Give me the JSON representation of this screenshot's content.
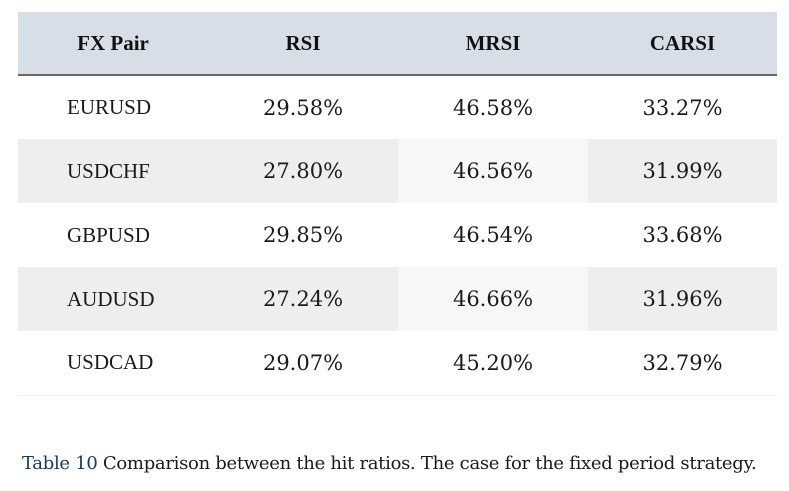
{
  "table": {
    "headers": [
      "FX Pair",
      "RSI",
      "MRSI",
      "CARSI"
    ],
    "rows": [
      [
        "EURUSD",
        "29.58%",
        "46.58%",
        "33.27%"
      ],
      [
        "USDCHF",
        "27.80%",
        "46.56%",
        "31.99%"
      ],
      [
        "GBPUSD",
        "29.85%",
        "46.54%",
        "33.68%"
      ],
      [
        "AUDUSD",
        "27.24%",
        "46.66%",
        "31.96%"
      ],
      [
        "USDCAD",
        "29.07%",
        "45.20%",
        "32.79%"
      ]
    ]
  },
  "caption": {
    "label": "Table 10",
    "text": " Comparison between the hit ratios. The case for the fixed period strategy."
  },
  "colors": {
    "header_bg": "#d7dee7",
    "row_shade": "#eeeeee",
    "caption_label": "#1d3a63"
  }
}
